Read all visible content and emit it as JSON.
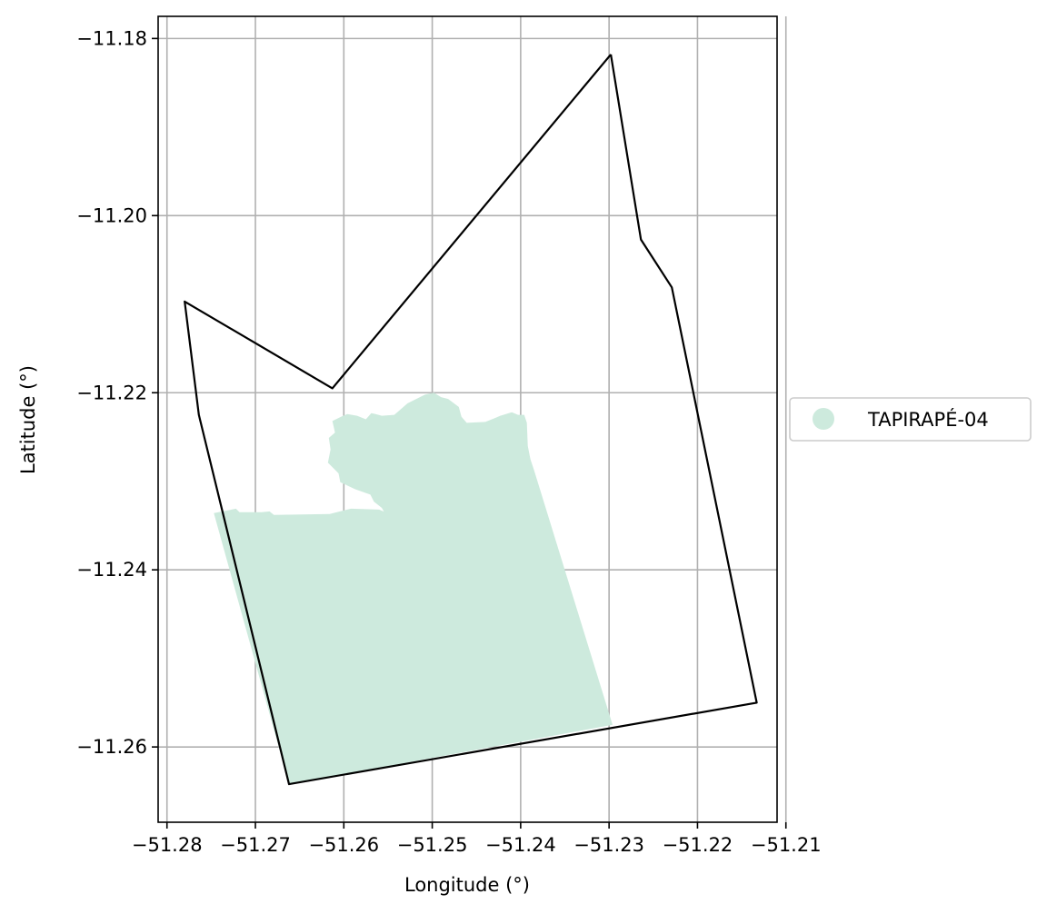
{
  "chart_data": {
    "type": "map",
    "xlabel": "Longitude (°)",
    "ylabel": "Latitude (°)",
    "xlim": [
      -51.281,
      -51.211
    ],
    "ylim": [
      -11.2685,
      -11.1775
    ],
    "x_ticks": [
      -51.28,
      -51.27,
      -51.26,
      -51.25,
      -51.24,
      -51.23,
      -51.22,
      -51.21
    ],
    "x_tick_labels": [
      "−51.28",
      "−51.27",
      "−51.26",
      "−51.25",
      "−51.24",
      "−51.23",
      "−51.22",
      "−51.21"
    ],
    "y_ticks": [
      -11.18,
      -11.2,
      -11.22,
      -11.24,
      -11.26
    ],
    "y_tick_labels": [
      "−11.18",
      "−11.20",
      "−11.22",
      "−11.24",
      "−11.26"
    ],
    "grid": true,
    "legend": {
      "placement": "outside-right",
      "entries": [
        "TAPIRAPÉ-04"
      ]
    },
    "boundary": {
      "stroke_color": "#000000",
      "coordinates": [
        [
          -51.2298,
          -11.1818
        ],
        [
          -51.2264,
          -11.2027
        ],
        [
          -51.2229,
          -11.2081
        ],
        [
          -51.2133,
          -11.255
        ],
        [
          -51.2662,
          -11.2642
        ],
        [
          -51.2764,
          -11.2225
        ],
        [
          -51.278,
          -11.2097
        ],
        [
          -51.2613,
          -11.2195
        ],
        [
          -51.2298,
          -11.1818
        ]
      ]
    },
    "series": [
      {
        "name": "TAPIRAPÉ-04",
        "color": "#cdeadd",
        "region": [
          [
            -51.2747,
            -11.2336
          ],
          [
            -51.2722,
            -11.2331
          ],
          [
            -51.2718,
            -11.2335
          ],
          [
            -51.2693,
            -11.2335
          ],
          [
            -51.2684,
            -11.2334
          ],
          [
            -51.2679,
            -11.2338
          ],
          [
            -51.2616,
            -11.2337
          ],
          [
            -51.2592,
            -11.2331
          ],
          [
            -51.256,
            -11.2332
          ],
          [
            -51.2541,
            -11.234
          ],
          [
            -51.2529,
            -11.2328
          ],
          [
            -51.2507,
            -11.2339
          ],
          [
            -51.2485,
            -11.2325
          ],
          [
            -51.2477,
            -11.2339
          ],
          [
            -51.2472,
            -11.2349
          ],
          [
            -51.2464,
            -11.2358
          ],
          [
            -51.2458,
            -11.236
          ],
          [
            -51.2449,
            -11.2366
          ],
          [
            -51.2435,
            -11.2374
          ],
          [
            -51.2426,
            -11.2392
          ],
          [
            -51.2416,
            -11.242
          ],
          [
            -51.2413,
            -11.2435
          ],
          [
            -51.2403,
            -11.244
          ],
          [
            -51.2396,
            -11.2445
          ],
          [
            -51.2381,
            -11.2452
          ],
          [
            -51.2364,
            -11.2456
          ],
          [
            -51.2369,
            -11.246
          ],
          [
            -51.236,
            -11.2468
          ],
          [
            -51.234,
            -11.2472
          ],
          [
            -51.2355,
            -11.2478
          ],
          [
            -51.2371,
            -11.2483
          ],
          [
            -51.2383,
            -11.2485
          ],
          [
            -51.2393,
            -11.249
          ],
          [
            -51.2401,
            -11.25
          ],
          [
            -51.2404,
            -11.2512
          ],
          [
            -51.241,
            -11.252
          ],
          [
            -51.2416,
            -11.2531
          ],
          [
            -51.243,
            -11.2538
          ],
          [
            -51.2451,
            -11.2544
          ],
          [
            -51.2473,
            -11.2545
          ],
          [
            -51.2486,
            -11.2541
          ],
          [
            -51.249,
            -11.254
          ],
          [
            -51.25,
            -11.2531
          ],
          [
            -51.2517,
            -11.2527
          ],
          [
            -51.2532,
            -11.2526
          ],
          [
            -51.2546,
            -11.2525
          ],
          [
            -51.2566,
            -11.2521
          ],
          [
            -51.2575,
            -11.2512
          ],
          [
            -51.2579,
            -11.2503
          ],
          [
            -51.2583,
            -11.2493
          ],
          [
            -51.2583,
            -11.2478
          ],
          [
            -51.259,
            -11.2463
          ],
          [
            -51.2591,
            -11.245
          ],
          [
            -51.259,
            -11.2438
          ],
          [
            -51.2592,
            -11.2424
          ],
          [
            -51.2598,
            -11.2409
          ],
          [
            -51.2603,
            -11.2399
          ],
          [
            -51.2593,
            -11.2395
          ],
          [
            -51.2585,
            -11.2385
          ],
          [
            -51.2584,
            -11.2372
          ],
          [
            -51.2575,
            -11.2358
          ],
          [
            -51.2556,
            -11.2344
          ],
          [
            -51.2552,
            -11.2339
          ],
          [
            -51.2557,
            -11.233
          ],
          [
            -51.2566,
            -11.2323
          ],
          [
            -51.257,
            -11.2315
          ],
          [
            -51.2587,
            -11.2309
          ],
          [
            -51.2604,
            -11.2301
          ],
          [
            -51.2606,
            -11.2291
          ],
          [
            -51.2618,
            -11.2279
          ],
          [
            -51.2615,
            -11.2264
          ],
          [
            -51.2617,
            -11.2251
          ],
          [
            -51.261,
            -11.2245
          ],
          [
            -51.2613,
            -11.2232
          ],
          [
            -51.2603,
            -11.2227
          ],
          [
            -51.2596,
            -11.2224
          ],
          [
            -51.2585,
            -11.2226
          ],
          [
            -51.2575,
            -11.223
          ],
          [
            -51.2569,
            -11.2223
          ],
          [
            -51.2564,
            -11.2224
          ],
          [
            -51.2557,
            -11.2226
          ],
          [
            -51.2543,
            -11.2225
          ],
          [
            -51.2536,
            -11.2219
          ],
          [
            -51.2528,
            -11.2212
          ],
          [
            -51.2516,
            -11.2206
          ],
          [
            -51.2508,
            -11.2202
          ],
          [
            -51.2498,
            -11.22
          ],
          [
            -51.249,
            -11.2205
          ],
          [
            -51.2482,
            -11.2207
          ],
          [
            -51.247,
            -11.2216
          ],
          [
            -51.2467,
            -11.2227
          ],
          [
            -51.2461,
            -11.2234
          ],
          [
            -51.244,
            -11.2233
          ],
          [
            -51.243,
            -11.2229
          ],
          [
            -51.2423,
            -11.2226
          ],
          [
            -51.241,
            -11.2222
          ],
          [
            -51.2403,
            -11.2225
          ],
          [
            -51.2396,
            -11.2225
          ],
          [
            -51.2393,
            -11.2234
          ],
          [
            -51.2392,
            -11.226
          ],
          [
            -51.2389,
            -11.2275
          ],
          [
            -51.2385,
            -11.2287
          ],
          [
            -51.2296,
            -11.2575
          ],
          [
            -51.2662,
            -11.2642
          ]
        ]
      }
    ]
  }
}
